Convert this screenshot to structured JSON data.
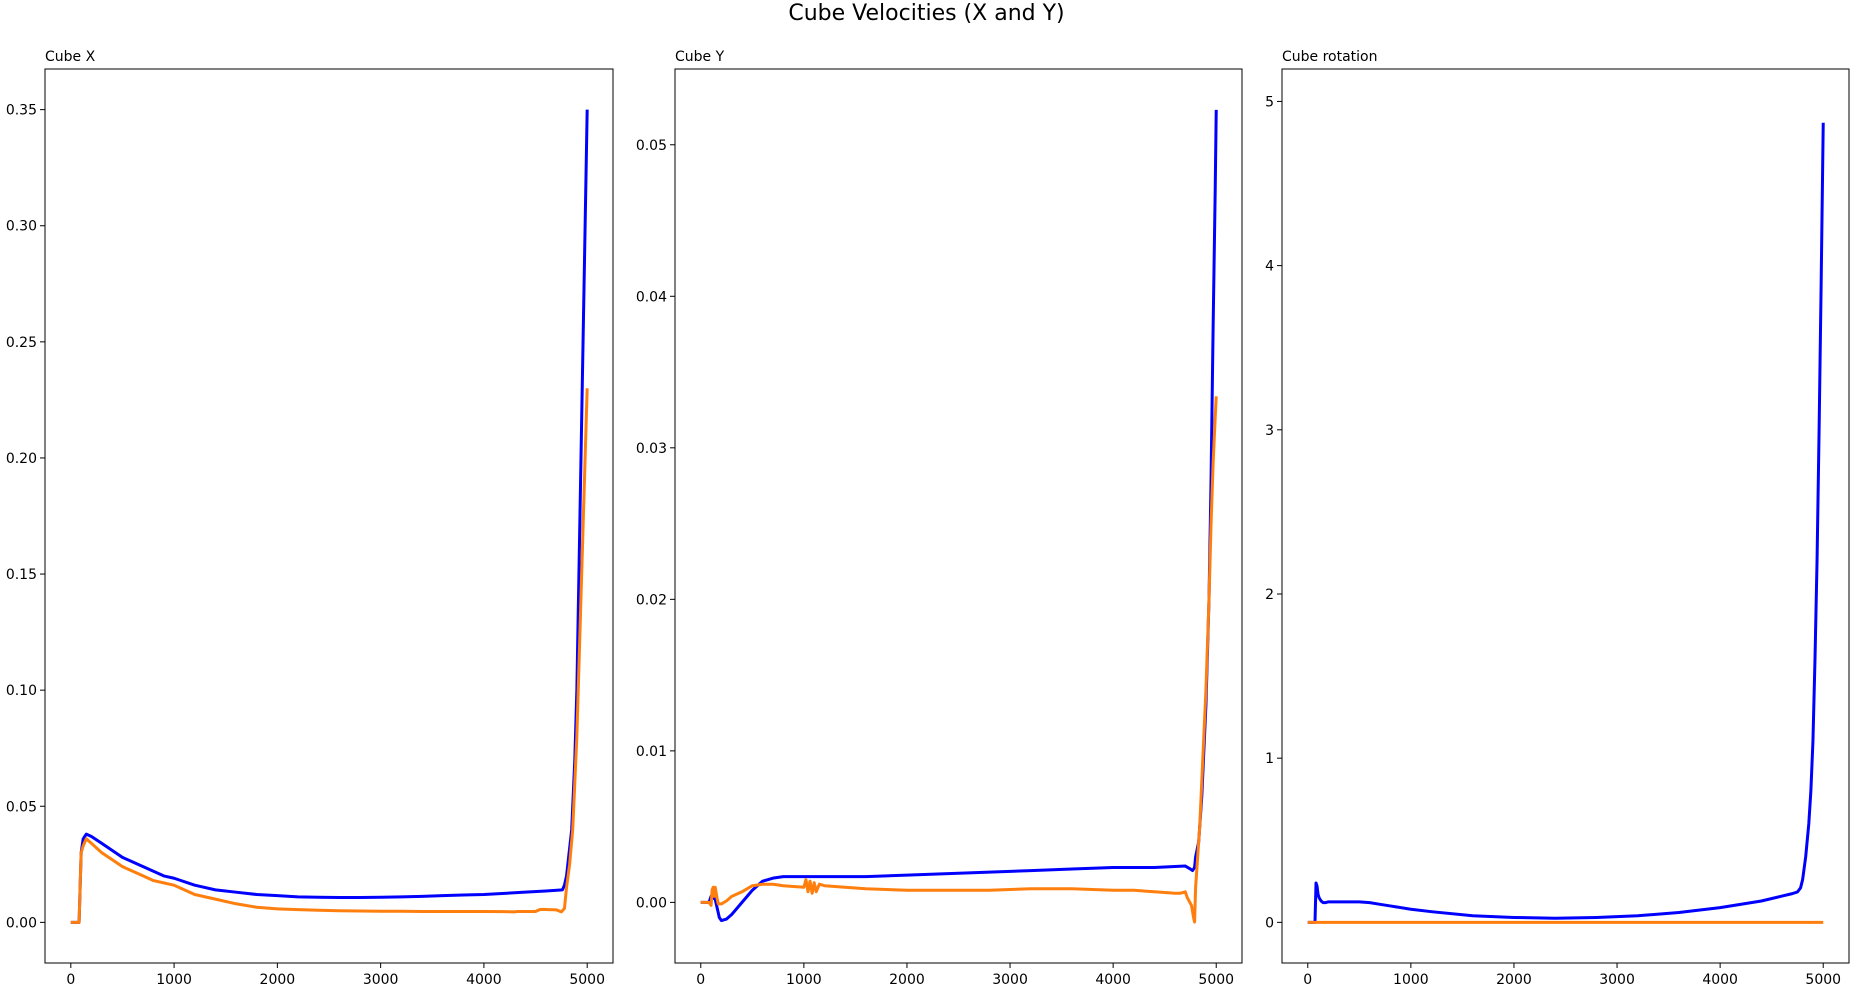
{
  "suptitle": "Cube Velocities (X and Y)",
  "colors": {
    "series_a": "#0000ff",
    "series_b": "#ff7f0e"
  },
  "chart_data": [
    {
      "type": "line",
      "title": "Cube X",
      "xlabel": "",
      "ylabel": "",
      "xlim": [
        -250,
        5250
      ],
      "ylim": [
        -0.0175,
        0.3675
      ],
      "xticks": [
        0,
        1000,
        2000,
        3000,
        4000,
        5000
      ],
      "yticks": [
        0.0,
        0.05,
        0.1,
        0.15,
        0.2,
        0.25,
        0.3,
        0.35
      ],
      "ytick_labels": [
        "0.00",
        "0.05",
        "0.10",
        "0.15",
        "0.20",
        "0.25",
        "0.30",
        "0.35"
      ],
      "grid": false,
      "series": [
        {
          "color": "#0000ff",
          "x": [
            0,
            60,
            80,
            100,
            120,
            150,
            200,
            300,
            400,
            500,
            600,
            700,
            800,
            900,
            1000,
            1200,
            1400,
            1600,
            1800,
            2000,
            2200,
            2400,
            2600,
            2800,
            3000,
            3200,
            3400,
            3600,
            3800,
            4000,
            4200,
            4400,
            4600,
            4760,
            4780,
            4800,
            4850,
            4880,
            4900,
            4920,
            4940,
            4960,
            4980,
            5000
          ],
          "y": [
            0,
            0,
            0,
            0.03,
            0.036,
            0.038,
            0.037,
            0.034,
            0.031,
            0.028,
            0.026,
            0.024,
            0.022,
            0.02,
            0.019,
            0.016,
            0.014,
            0.013,
            0.012,
            0.0115,
            0.011,
            0.0108,
            0.0107,
            0.0107,
            0.0108,
            0.011,
            0.0112,
            0.0115,
            0.0118,
            0.012,
            0.0125,
            0.013,
            0.0135,
            0.014,
            0.016,
            0.02,
            0.04,
            0.07,
            0.1,
            0.15,
            0.2,
            0.25,
            0.3,
            0.35
          ]
        },
        {
          "color": "#ff7f0e",
          "x": [
            0,
            60,
            80,
            100,
            120,
            150,
            200,
            300,
            400,
            500,
            600,
            700,
            800,
            900,
            1000,
            1200,
            1400,
            1600,
            1800,
            2000,
            2200,
            2400,
            2600,
            2800,
            3000,
            3200,
            3400,
            3600,
            3800,
            4000,
            4200,
            4300,
            4320,
            4500,
            4540,
            4560,
            4700,
            4750,
            4780,
            4800,
            4830,
            4860,
            4880,
            4900,
            4920,
            4940,
            4960,
            4980,
            5000
          ],
          "y": [
            0,
            0,
            0,
            0.03,
            0.033,
            0.036,
            0.034,
            0.03,
            0.027,
            0.024,
            0.022,
            0.02,
            0.018,
            0.017,
            0.016,
            0.012,
            0.01,
            0.008,
            0.0065,
            0.0058,
            0.0055,
            0.0052,
            0.005,
            0.0049,
            0.0048,
            0.0048,
            0.0047,
            0.0047,
            0.0047,
            0.0047,
            0.0046,
            0.0045,
            0.0047,
            0.0047,
            0.0055,
            0.0056,
            0.0054,
            0.0045,
            0.006,
            0.015,
            0.025,
            0.04,
            0.06,
            0.08,
            0.11,
            0.14,
            0.17,
            0.2,
            0.23
          ]
        }
      ]
    },
    {
      "type": "line",
      "title": "Cube Y",
      "xlabel": "",
      "ylabel": "",
      "xlim": [
        -250,
        5250
      ],
      "ylim": [
        -0.004,
        0.055
      ],
      "xticks": [
        0,
        1000,
        2000,
        3000,
        4000,
        5000
      ],
      "yticks": [
        0.0,
        0.01,
        0.02,
        0.03,
        0.04,
        0.05
      ],
      "ytick_labels": [
        "0.00",
        "0.01",
        "0.02",
        "0.03",
        "0.04",
        "0.05"
      ],
      "grid": false,
      "series": [
        {
          "color": "#0000ff",
          "x": [
            0,
            60,
            80,
            100,
            120,
            140,
            160,
            180,
            200,
            250,
            300,
            400,
            500,
            600,
            700,
            800,
            1000,
            1200,
            1600,
            2000,
            2400,
            2800,
            3200,
            3600,
            4000,
            4400,
            4700,
            4750,
            4770,
            4790,
            4800,
            4830,
            4860,
            4900,
            4930,
            4950,
            4970,
            4990,
            5000
          ],
          "y": [
            0,
            0,
            0,
            0.0004,
            0.0003,
            0.0002,
            -0.0004,
            -0.001,
            -0.0012,
            -0.0011,
            -0.0008,
            0.0,
            0.0008,
            0.0014,
            0.0016,
            0.0017,
            0.0017,
            0.0017,
            0.0017,
            0.0018,
            0.0019,
            0.002,
            0.0021,
            0.0022,
            0.0023,
            0.0023,
            0.0024,
            0.0022,
            0.0021,
            0.0023,
            0.003,
            0.004,
            0.007,
            0.013,
            0.02,
            0.028,
            0.038,
            0.047,
            0.0523
          ]
        },
        {
          "color": "#ff7f0e",
          "x": [
            0,
            50,
            80,
            100,
            110,
            120,
            130,
            140,
            150,
            160,
            170,
            180,
            200,
            250,
            300,
            400,
            500,
            600,
            700,
            800,
            1000,
            1020,
            1040,
            1060,
            1080,
            1100,
            1120,
            1150,
            1200,
            1400,
            1600,
            2000,
            2400,
            2800,
            3200,
            3600,
            4000,
            4200,
            4400,
            4600,
            4650,
            4700,
            4720,
            4760,
            4780,
            4790,
            4800,
            4820,
            4840,
            4860,
            4900,
            4930,
            4950,
            4970,
            4990,
            5000
          ],
          "y": [
            0,
            0,
            0,
            -0.0002,
            0.0008,
            0.001,
            0.0004,
            0.001,
            0.0006,
            0.0002,
            -0.0001,
            -0.0001,
            -0.0001,
            0.0001,
            0.0004,
            0.0007,
            0.0011,
            0.0012,
            0.0012,
            0.0011,
            0.001,
            0.0015,
            0.0007,
            0.0014,
            0.0006,
            0.0013,
            0.0007,
            0.0012,
            0.0011,
            0.001,
            0.0009,
            0.0008,
            0.0008,
            0.0008,
            0.0009,
            0.0009,
            0.0008,
            0.0008,
            0.0007,
            0.0006,
            0.0006,
            0.0007,
            0.0003,
            -0.0002,
            -0.001,
            -0.0013,
            0.001,
            0.003,
            0.005,
            0.008,
            0.014,
            0.02,
            0.025,
            0.029,
            0.032,
            0.0334
          ]
        }
      ]
    },
    {
      "type": "line",
      "title": "Cube rotation",
      "xlabel": "",
      "ylabel": "",
      "xlim": [
        -250,
        5250
      ],
      "ylim": [
        -0.2475,
        5.1975
      ],
      "xticks": [
        0,
        1000,
        2000,
        3000,
        4000,
        5000
      ],
      "yticks": [
        0,
        1,
        2,
        3,
        4,
        5
      ],
      "ytick_labels": [
        "0",
        "1",
        "2",
        "3",
        "4",
        "5"
      ],
      "grid": false,
      "series": [
        {
          "color": "#0000ff",
          "x": [
            0,
            50,
            70,
            80,
            90,
            100,
            110,
            130,
            150,
            170,
            200,
            300,
            400,
            500,
            600,
            700,
            800,
            1000,
            1200,
            1600,
            2000,
            2400,
            2800,
            3200,
            3600,
            4000,
            4400,
            4600,
            4700,
            4750,
            4780,
            4800,
            4830,
            4860,
            4880,
            4900,
            4920,
            4940,
            4960,
            4980,
            5000
          ],
          "y": [
            0,
            0,
            0,
            0.24,
            0.22,
            0.17,
            0.15,
            0.13,
            0.12,
            0.12,
            0.125,
            0.125,
            0.125,
            0.125,
            0.12,
            0.11,
            0.1,
            0.08,
            0.065,
            0.04,
            0.03,
            0.025,
            0.03,
            0.04,
            0.06,
            0.09,
            0.13,
            0.16,
            0.175,
            0.185,
            0.21,
            0.26,
            0.4,
            0.6,
            0.8,
            1.1,
            1.6,
            2.2,
            3.0,
            3.9,
            4.87
          ]
        },
        {
          "color": "#ff7f0e",
          "x": [
            0,
            5000
          ],
          "y": [
            0,
            0
          ]
        }
      ]
    }
  ]
}
